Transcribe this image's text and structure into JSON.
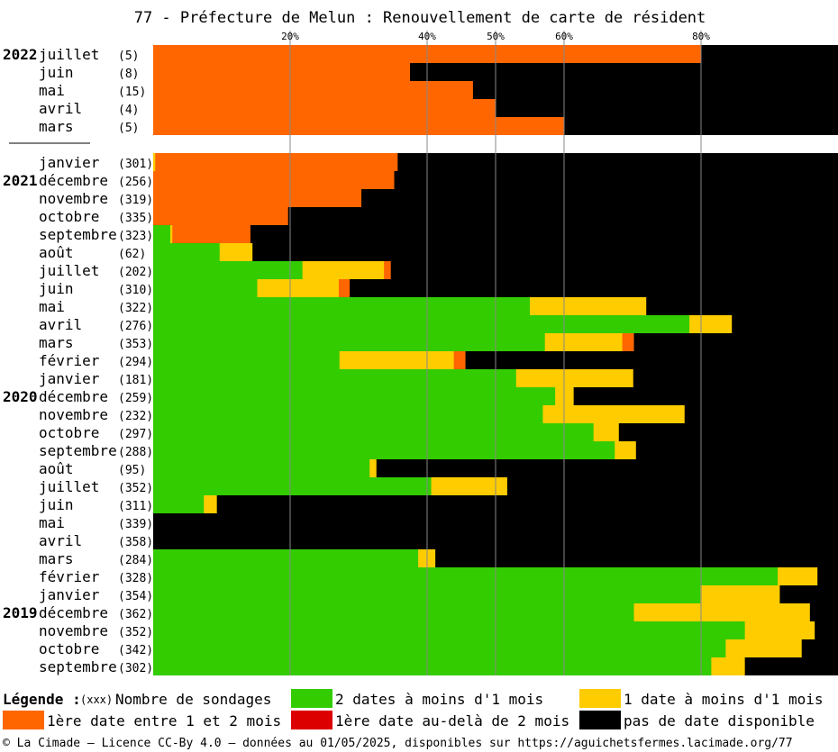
{
  "title": "77 - Préfecture de Melun : Renouvellement de carte de résident",
  "chart_data": {
    "type": "bar",
    "orientation": "horizontal",
    "stacked": true,
    "xlim": [
      0,
      100
    ],
    "x_ticks": [
      {
        "value": 20,
        "label": "20%"
      },
      {
        "value": 40,
        "label": "40%"
      },
      {
        "value": 50,
        "label": "50%"
      },
      {
        "value": 60,
        "label": "60%"
      },
      {
        "value": 80,
        "label": "80%"
      }
    ],
    "colors": {
      "green": "#33cc00",
      "yellow": "#ffcc00",
      "orange": "#ff6600",
      "red": "#dd0000",
      "black": "#000000"
    },
    "groups": [
      {
        "rows": [
          {
            "year": "2022",
            "month": "juillet",
            "count": "(5)",
            "green": 0,
            "yellow": 0,
            "orange": 80,
            "red": 0,
            "black": 20
          },
          {
            "year": "",
            "month": "juin",
            "count": "(8)",
            "green": 0,
            "yellow": 0,
            "orange": 37.5,
            "red": 0,
            "black": 62.5
          },
          {
            "year": "",
            "month": "mai",
            "count": "(15)",
            "green": 0,
            "yellow": 0,
            "orange": 46.7,
            "red": 0,
            "black": 53.3
          },
          {
            "year": "",
            "month": "avril",
            "count": "(4)",
            "green": 0,
            "yellow": 0,
            "orange": 50,
            "red": 0,
            "black": 50
          },
          {
            "year": "",
            "month": "mars",
            "count": "(5)",
            "green": 0,
            "yellow": 0,
            "orange": 60,
            "red": 0,
            "black": 40
          }
        ]
      },
      {
        "rows": [
          {
            "year": "",
            "month": "janvier",
            "count": "(301)",
            "green": 0,
            "yellow": 0.3,
            "orange": 35.4,
            "red": 0,
            "black": 64.3
          },
          {
            "year": "2021",
            "month": "décembre",
            "count": "(256)",
            "green": 0,
            "yellow": 0,
            "orange": 35.2,
            "red": 0,
            "black": 64.8
          },
          {
            "year": "",
            "month": "novembre",
            "count": "(319)",
            "green": 0,
            "yellow": 0,
            "orange": 30.4,
            "red": 0,
            "black": 69.6
          },
          {
            "year": "",
            "month": "octobre",
            "count": "(335)",
            "green": 0,
            "yellow": 0,
            "orange": 19.7,
            "red": 0,
            "black": 80.3
          },
          {
            "year": "",
            "month": "septembre",
            "count": "(323)",
            "green": 2.5,
            "yellow": 0.3,
            "orange": 11.4,
            "red": 0,
            "black": 85.8
          },
          {
            "year": "",
            "month": "août",
            "count": "(62)",
            "green": 9.7,
            "yellow": 4.8,
            "orange": 0,
            "red": 0,
            "black": 85.5
          },
          {
            "year": "",
            "month": "juillet",
            "count": "(202)",
            "green": 21.8,
            "yellow": 11.9,
            "orange": 1,
            "red": 0,
            "black": 65.3
          },
          {
            "year": "",
            "month": "juin",
            "count": "(310)",
            "green": 15.2,
            "yellow": 11.9,
            "orange": 1.6,
            "red": 0,
            "black": 71.3
          },
          {
            "year": "",
            "month": "mai",
            "count": "(322)",
            "green": 55,
            "yellow": 17,
            "orange": 0,
            "red": 0,
            "black": 28
          },
          {
            "year": "",
            "month": "avril",
            "count": "(276)",
            "green": 78.3,
            "yellow": 6.2,
            "orange": 0,
            "red": 0,
            "black": 15.5
          },
          {
            "year": "",
            "month": "mars",
            "count": "(353)",
            "green": 57.2,
            "yellow": 11.3,
            "orange": 1.7,
            "red": 0,
            "black": 29.8
          },
          {
            "year": "",
            "month": "février",
            "count": "(294)",
            "green": 27.2,
            "yellow": 16.7,
            "orange": 1.7,
            "red": 0,
            "black": 54.4
          },
          {
            "year": "",
            "month": "janvier",
            "count": "(181)",
            "green": 53,
            "yellow": 17.1,
            "orange": 0,
            "red": 0,
            "black": 29.9
          },
          {
            "year": "2020",
            "month": "décembre",
            "count": "(259)",
            "green": 58.7,
            "yellow": 2.7,
            "orange": 0,
            "red": 0,
            "black": 38.6
          },
          {
            "year": "",
            "month": "novembre",
            "count": "(232)",
            "green": 56.9,
            "yellow": 20.7,
            "orange": 0,
            "red": 0,
            "black": 22.4
          },
          {
            "year": "",
            "month": "octobre",
            "count": "(297)",
            "green": 64.3,
            "yellow": 3.7,
            "orange": 0,
            "red": 0,
            "black": 32
          },
          {
            "year": "",
            "month": "septembre",
            "count": "(288)",
            "green": 67.4,
            "yellow": 3.1,
            "orange": 0,
            "red": 0,
            "black": 29.5
          },
          {
            "year": "",
            "month": "août",
            "count": "(95)",
            "green": 31.6,
            "yellow": 1,
            "orange": 0,
            "red": 0,
            "black": 67.4
          },
          {
            "year": "",
            "month": "juillet",
            "count": "(352)",
            "green": 40.6,
            "yellow": 11.1,
            "orange": 0,
            "red": 0,
            "black": 48.3
          },
          {
            "year": "",
            "month": "juin",
            "count": "(311)",
            "green": 7.4,
            "yellow": 1.9,
            "orange": 0,
            "red": 0,
            "black": 90.7
          },
          {
            "year": "",
            "month": "mai",
            "count": "(339)",
            "green": 0,
            "yellow": 0,
            "orange": 0,
            "red": 0,
            "black": 100
          },
          {
            "year": "",
            "month": "avril",
            "count": "(358)",
            "green": 0,
            "yellow": 0,
            "orange": 0,
            "red": 0,
            "black": 100
          },
          {
            "year": "",
            "month": "mars",
            "count": "(284)",
            "green": 38.7,
            "yellow": 2.5,
            "orange": 0,
            "red": 0,
            "black": 58.8
          },
          {
            "year": "",
            "month": "février",
            "count": "(328)",
            "green": 91.2,
            "yellow": 5.8,
            "orange": 0,
            "red": 0,
            "black": 3
          },
          {
            "year": "",
            "month": "janvier",
            "count": "(354)",
            "green": 79.9,
            "yellow": 11.6,
            "orange": 0,
            "red": 0,
            "black": 8.5
          },
          {
            "year": "2019",
            "month": "décembre",
            "count": "(362)",
            "green": 70.2,
            "yellow": 25.7,
            "orange": 0,
            "red": 0,
            "black": 4.1
          },
          {
            "year": "",
            "month": "novembre",
            "count": "(352)",
            "green": 86.4,
            "yellow": 10.2,
            "orange": 0,
            "red": 0,
            "black": 3.4
          },
          {
            "year": "",
            "month": "octobre",
            "count": "(342)",
            "green": 83.6,
            "yellow": 11.1,
            "orange": 0,
            "red": 0,
            "black": 5.3
          },
          {
            "year": "",
            "month": "septembre",
            "count": "(302)",
            "green": 81.5,
            "yellow": 4.9,
            "orange": 0,
            "red": 0,
            "black": 13.6
          }
        ]
      }
    ]
  },
  "legend": {
    "label": "Légende :",
    "count_hint": "(xxx)",
    "count_text": "Nombre de sondages",
    "items": [
      {
        "key": "green",
        "text": "2 dates à moins d'1 mois"
      },
      {
        "key": "yellow",
        "text": "1 date à moins d'1 mois"
      },
      {
        "key": "orange",
        "text": "1ère date entre 1 et 2 mois"
      },
      {
        "key": "red",
        "text": "1ère date au-delà de 2 mois"
      },
      {
        "key": "black",
        "text": "pas de date disponible"
      }
    ]
  },
  "footer": "© La Cimade – Licence CC-By 4.0 – données au 01/05/2025, disponibles sur https://aguichetsfermes.lacimade.org/77"
}
